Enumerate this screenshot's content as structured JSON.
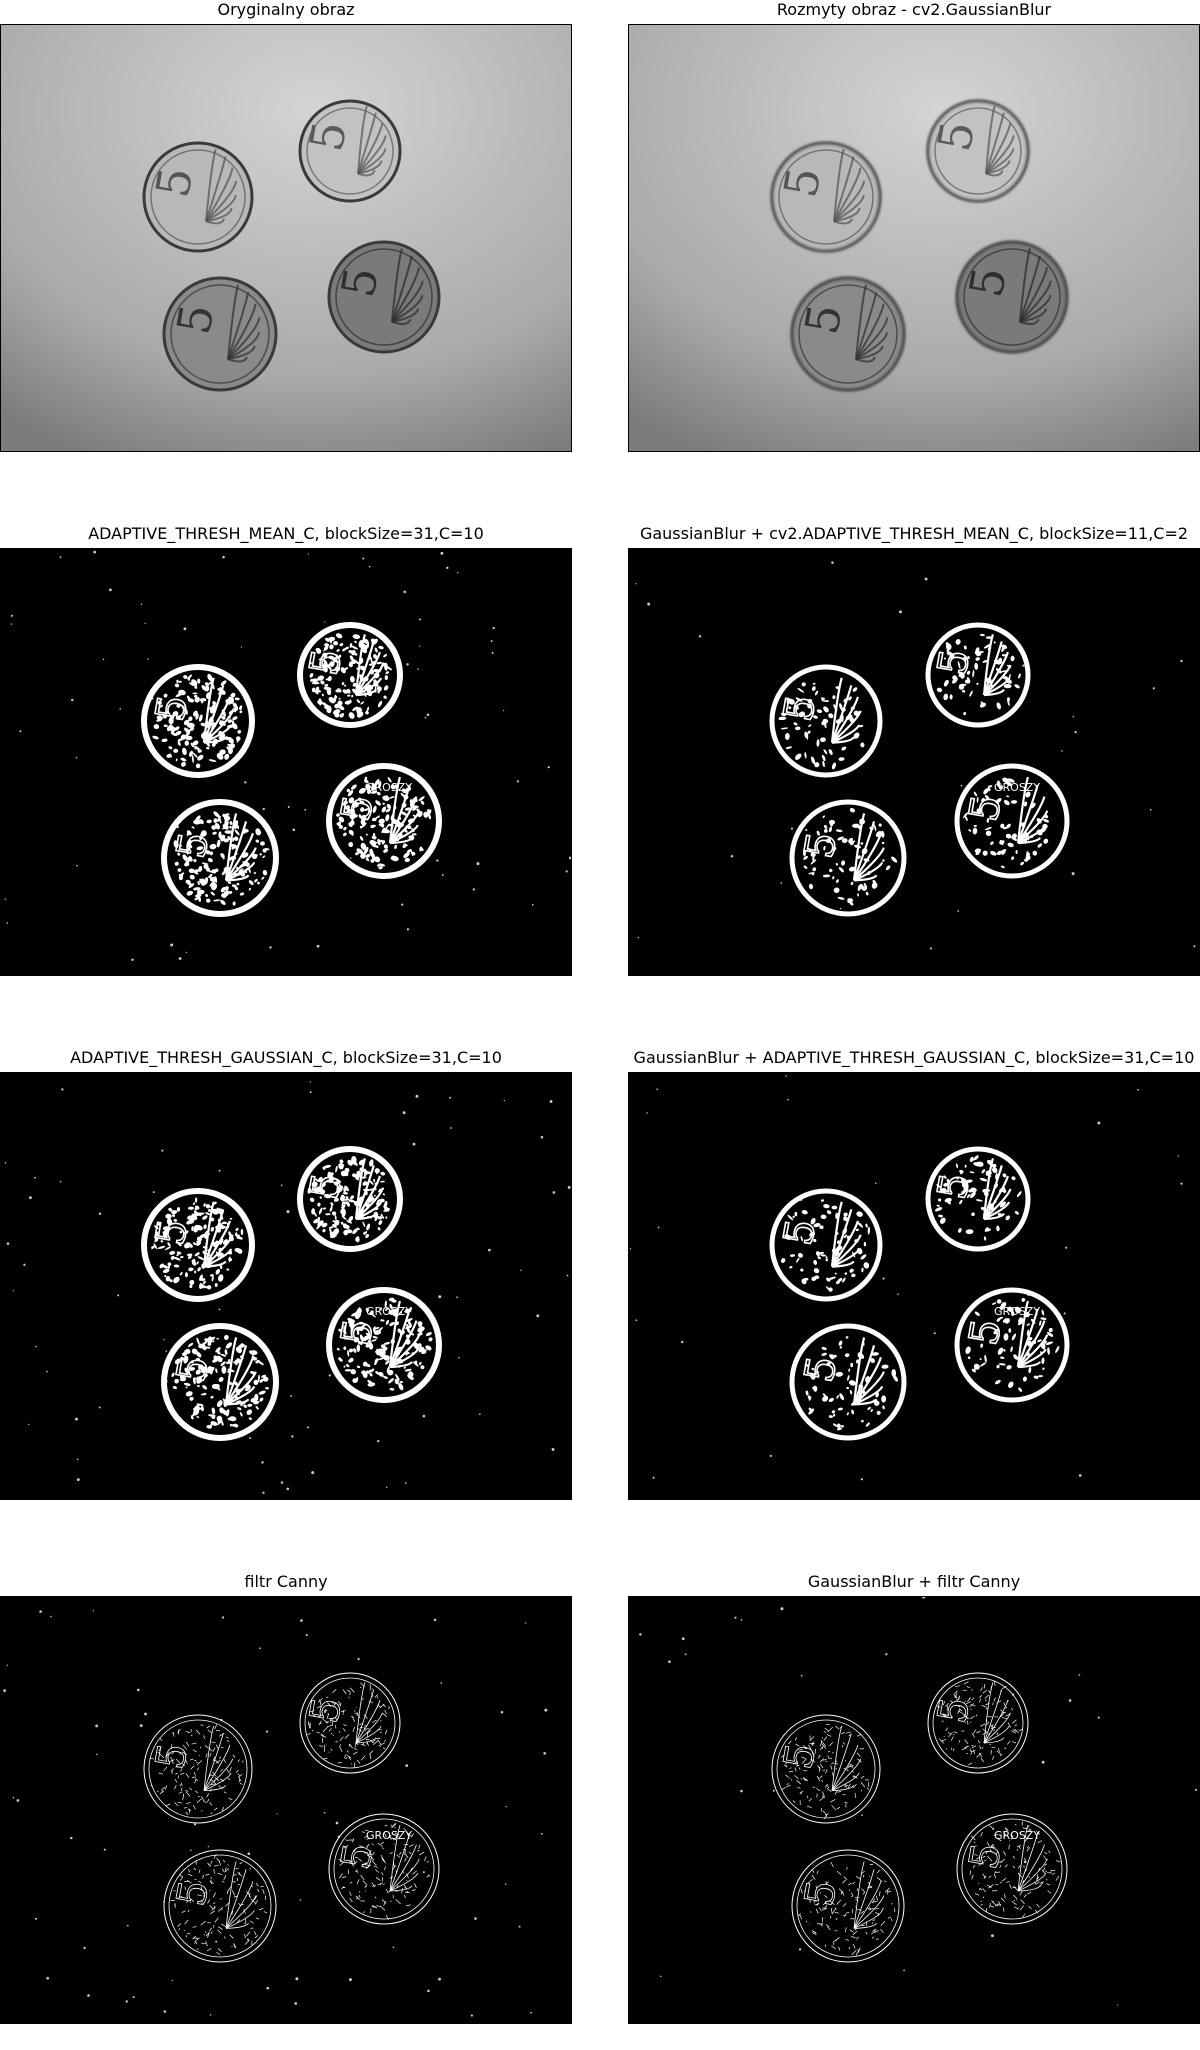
{
  "panels": [
    {
      "title": "Oryginalny obraz",
      "kind": "photo-original",
      "image_name": "coins-original-image"
    },
    {
      "title": "Rozmyty obraz - cv2.GaussianBlur",
      "kind": "photo-blurred",
      "image_name": "coins-blurred-image"
    },
    {
      "title": "ADAPTIVE_THRESH_MEAN_C, blockSize=31,C=10",
      "kind": "thresh-mean",
      "image_name": "coins-adaptive-mean-image"
    },
    {
      "title": "GaussianBlur + cv2.ADAPTIVE_THRESH_MEAN_C, blockSize=11,C=2",
      "kind": "thresh-mean-blur",
      "image_name": "coins-blur-adaptive-mean-image"
    },
    {
      "title": "ADAPTIVE_THRESH_GAUSSIAN_C, blockSize=31,C=10",
      "kind": "thresh-gauss",
      "image_name": "coins-adaptive-gaussian-image"
    },
    {
      "title": "GaussianBlur + ADAPTIVE_THRESH_GAUSSIAN_C, blockSize=31,C=10",
      "kind": "thresh-gauss-blur",
      "image_name": "coins-blur-adaptive-gaussian-image"
    },
    {
      "title": "filtr Canny",
      "kind": "canny",
      "image_name": "coins-canny-image"
    },
    {
      "title": "GaussianBlur + filtr Canny",
      "kind": "canny-blur",
      "image_name": "coins-blur-canny-image"
    }
  ],
  "coin_labels": [
    "5",
    "GROSZY"
  ],
  "colors": {
    "background": "#ffffff",
    "edge": "#ffffff",
    "threshold_bg": "#000000"
  }
}
